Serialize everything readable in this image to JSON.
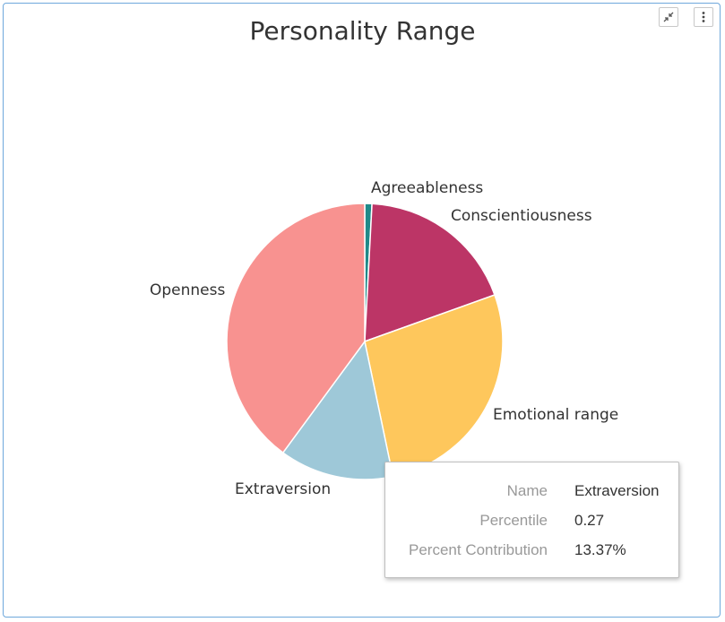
{
  "chart_data": {
    "type": "pie",
    "title": "Personality Range",
    "slices": [
      {
        "name": "Agreeableness",
        "value": 0.84,
        "color": "#1f8a8a"
      },
      {
        "name": "Conscientiousness",
        "value": 18.68,
        "color": "#bc3566"
      },
      {
        "name": "Emotional range",
        "value": 27.2,
        "color": "#fec75c"
      },
      {
        "name": "Extraversion",
        "value": 13.37,
        "color": "#9ec8d8"
      },
      {
        "name": "Openness",
        "value": 39.91,
        "color": "#f89290"
      }
    ]
  },
  "tooltip": {
    "rows": [
      {
        "key": "Name",
        "value": "Extraversion"
      },
      {
        "key": "Percentile",
        "value": "0.27"
      },
      {
        "key": "Percent Contribution",
        "value": "13.37%"
      }
    ]
  },
  "toolbar": {
    "minimize_icon": "collapse-arrows-icon",
    "menu_icon": "vertical-dots-icon"
  }
}
